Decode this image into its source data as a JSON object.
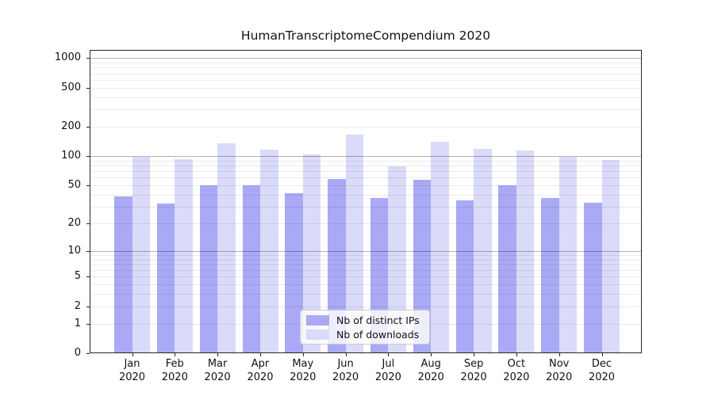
{
  "chart_data": {
    "type": "bar",
    "title": "HumanTranscriptomeCompendium 2020",
    "categories": [
      "Jan",
      "Feb",
      "Mar",
      "Apr",
      "May",
      "Jun",
      "Jul",
      "Aug",
      "Sep",
      "Oct",
      "Nov",
      "Dec"
    ],
    "category_year": "2020",
    "series": [
      {
        "name": "Nb of distinct IPs",
        "color": "#a9a9f5",
        "values": [
          38,
          32,
          50,
          50,
          41,
          58,
          37,
          57,
          35,
          50,
          37,
          33
        ]
      },
      {
        "name": "Nb of downloads",
        "color": "#dadaf9",
        "values": [
          98,
          93,
          135,
          117,
          105,
          166,
          79,
          140,
          119,
          114,
          98,
          91
        ]
      }
    ],
    "yscale": "log1p",
    "ylim": [
      0,
      1212
    ],
    "yticks": [
      1000,
      500,
      200,
      100,
      50,
      20,
      10,
      5,
      2,
      1,
      0
    ],
    "grid_major": [
      10,
      100,
      1000
    ],
    "grid_minor": [
      1,
      2,
      3,
      4,
      5,
      6,
      7,
      8,
      9,
      20,
      30,
      40,
      50,
      60,
      70,
      80,
      90,
      200,
      300,
      400,
      500,
      600,
      700,
      800,
      900
    ],
    "legend_position": "lower center",
    "grid": true
  }
}
